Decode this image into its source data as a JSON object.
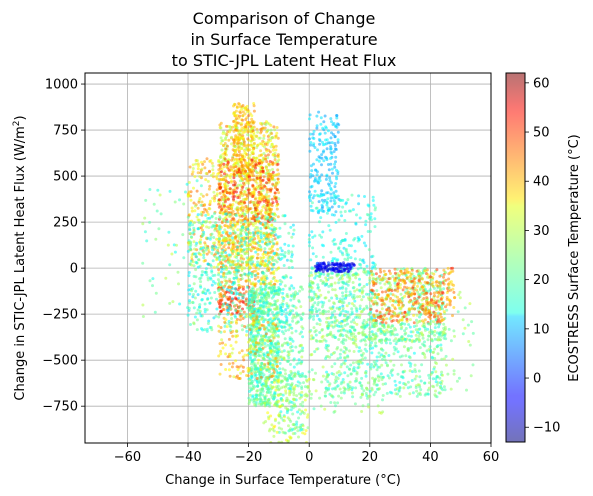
{
  "chart_data": {
    "type": "scatter",
    "title_lines": [
      "Comparison of Change",
      "in Surface Temperature",
      "to STIC-JPL Latent Heat Flux"
    ],
    "xlabel": "Change in Surface Temperature (°C)",
    "ylabel_main": "Change in STIC-JPL Latent Heat Flux (W/m",
    "ylabel_sup": "2",
    "ylabel_close": ")",
    "xlim": [
      -74,
      60
    ],
    "ylim": [
      -950,
      1060
    ],
    "x_ticks": [
      -60,
      -40,
      -20,
      0,
      20,
      40,
      60
    ],
    "x_tick_labels": [
      "−60",
      "−40",
      "−20",
      "0",
      "20",
      "40",
      "60"
    ],
    "y_ticks": [
      -750,
      -500,
      -250,
      0,
      250,
      500,
      750,
      1000
    ],
    "y_tick_labels": [
      "−750",
      "−500",
      "−250",
      "0",
      "250",
      "500",
      "750",
      "1000"
    ],
    "grid": true,
    "colorbar": {
      "label": "ECOSTRESS Surface Temperature (°C)",
      "range": [
        -13,
        62
      ],
      "ticks": [
        -10,
        0,
        10,
        20,
        30,
        40,
        50,
        60
      ],
      "tick_labels": [
        "−10",
        "0",
        "10",
        "20",
        "30",
        "40",
        "50",
        "60"
      ],
      "colormap": "jet",
      "alpha": 0.55
    },
    "point_clusters": [
      {
        "x": [
          -30,
          -10
        ],
        "y": [
          -100,
          800
        ],
        "color": [
          25,
          45
        ],
        "count": 900
      },
      {
        "x": [
          -40,
          -12
        ],
        "y": [
          0,
          600
        ],
        "color": [
          28,
          45
        ],
        "count": 500
      },
      {
        "x": [
          -25,
          -18
        ],
        "y": [
          500,
          900
        ],
        "color": [
          30,
          45
        ],
        "count": 200
      },
      {
        "x": [
          -30,
          -10
        ],
        "y": [
          250,
          600
        ],
        "color": [
          40,
          55
        ],
        "count": 160
      },
      {
        "x": [
          -30,
          -18
        ],
        "y": [
          -250,
          -100
        ],
        "color": [
          40,
          55
        ],
        "count": 130
      },
      {
        "x": [
          -20,
          -10
        ],
        "y": [
          -750,
          -100
        ],
        "color": [
          15,
          28
        ],
        "count": 700
      },
      {
        "x": [
          -10,
          -2
        ],
        "y": [
          -900,
          -100
        ],
        "color": [
          15,
          28
        ],
        "count": 250
      },
      {
        "x": [
          -40,
          -5
        ],
        "y": [
          -350,
          300
        ],
        "color": [
          12,
          25
        ],
        "count": 550
      },
      {
        "x": [
          -30,
          -10
        ],
        "y": [
          -600,
          -250
        ],
        "color": [
          30,
          45
        ],
        "count": 150
      },
      {
        "x": [
          -15,
          0
        ],
        "y": [
          -950,
          -600
        ],
        "color": [
          25,
          35
        ],
        "count": 90
      },
      {
        "x": [
          -55,
          -35
        ],
        "y": [
          -300,
          500
        ],
        "color": [
          15,
          30
        ],
        "count": 60
      },
      {
        "x": [
          0,
          10
        ],
        "y": [
          300,
          850
        ],
        "color": [
          8,
          15
        ],
        "count": 180
      },
      {
        "x": [
          0,
          22
        ],
        "y": [
          -300,
          400
        ],
        "color": [
          12,
          22
        ],
        "count": 250
      },
      {
        "x": [
          0,
          45
        ],
        "y": [
          -400,
          0
        ],
        "color": [
          18,
          30
        ],
        "count": 700
      },
      {
        "x": [
          20,
          48
        ],
        "y": [
          -300,
          0
        ],
        "color": [
          35,
          50
        ],
        "count": 350
      },
      {
        "x": [
          5,
          45
        ],
        "y": [
          -700,
          -300
        ],
        "color": [
          15,
          28
        ],
        "count": 450
      },
      {
        "x": [
          2,
          15
        ],
        "y": [
          -20,
          30
        ],
        "color": [
          -8,
          0
        ],
        "count": 120
      },
      {
        "x": [
          -10,
          25
        ],
        "y": [
          -800,
          -400
        ],
        "color": [
          20,
          30
        ],
        "count": 130
      },
      {
        "x": [
          38,
          55
        ],
        "y": [
          -700,
          -100
        ],
        "color": [
          20,
          30
        ],
        "count": 50
      }
    ]
  }
}
